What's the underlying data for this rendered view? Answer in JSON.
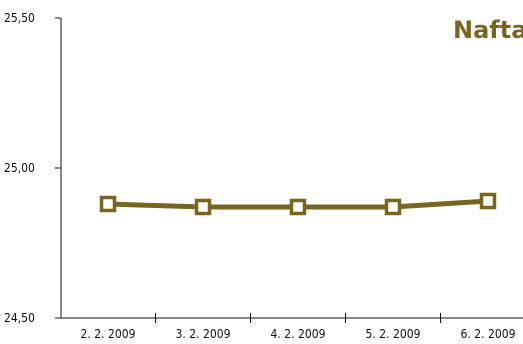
{
  "chart_data": {
    "type": "line",
    "title": "Nafta",
    "xlabel": "",
    "ylabel": "",
    "categories": [
      "2. 2. 2009",
      "3. 2. 2009",
      "4. 2. 2009",
      "5. 2. 2009",
      "6. 2. 2009"
    ],
    "series": [
      {
        "values": [
          24.88,
          24.87,
          24.87,
          24.87,
          24.89
        ]
      }
    ],
    "ylim": [
      24.5,
      25.5
    ],
    "yticks": [
      24.5,
      25.0,
      25.5
    ],
    "ytick_labels": [
      "24,50",
      "25,00",
      "25,50"
    ],
    "grid": false,
    "legend": "none",
    "colors": {
      "series": "#7a6520",
      "title": "#7a6520",
      "axis": "#111111"
    },
    "marker": "hollow-square"
  }
}
